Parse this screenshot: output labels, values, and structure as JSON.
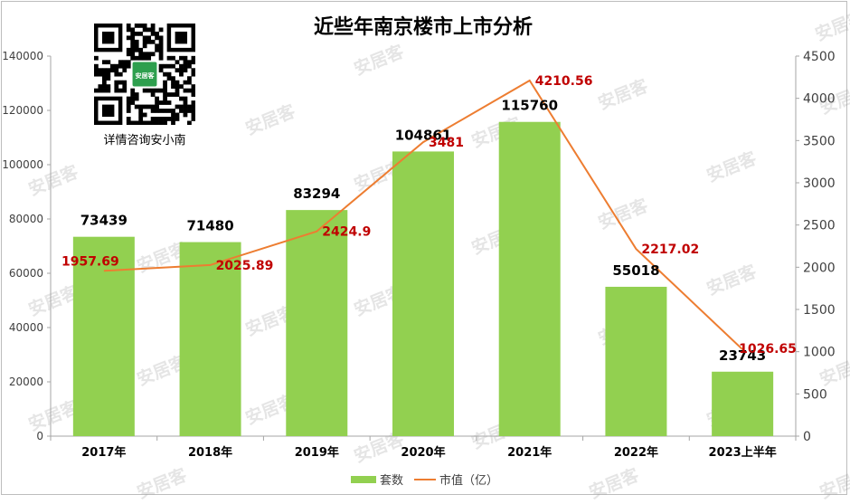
{
  "watermark_text": "安居客",
  "qr": {
    "caption": "详情咨询安小南",
    "badge_text": "安居客"
  },
  "chart_data": {
    "type": "bar",
    "title": "近些年南京楼市上市分析",
    "categories": [
      "2017年",
      "2018年",
      "2019年",
      "2020年",
      "2021年",
      "2022年",
      "2023上半年"
    ],
    "series": [
      {
        "name": "套数",
        "type": "bar",
        "axis": "left",
        "color": "#92d050",
        "values": [
          73439,
          71480,
          83294,
          104861,
          115760,
          55018,
          23743
        ]
      },
      {
        "name": "市值（亿）",
        "type": "line",
        "axis": "right",
        "color": "#ed7d31",
        "values": [
          1957.69,
          2025.89,
          2424.9,
          3481,
          4210.56,
          2217.02,
          1026.65
        ]
      }
    ],
    "bar_label_color": "#000000",
    "line_label_color": "#c00000",
    "left_axis": {
      "min": 0,
      "max": 140000,
      "ticks": [
        0,
        20000,
        40000,
        60000,
        80000,
        100000,
        120000,
        140000
      ]
    },
    "right_axis": {
      "min": 0,
      "max": 4500,
      "ticks": [
        0,
        500,
        1000,
        1500,
        2000,
        2500,
        3000,
        3500,
        4000,
        4500
      ]
    },
    "grid": false,
    "legend_position": "bottom"
  }
}
